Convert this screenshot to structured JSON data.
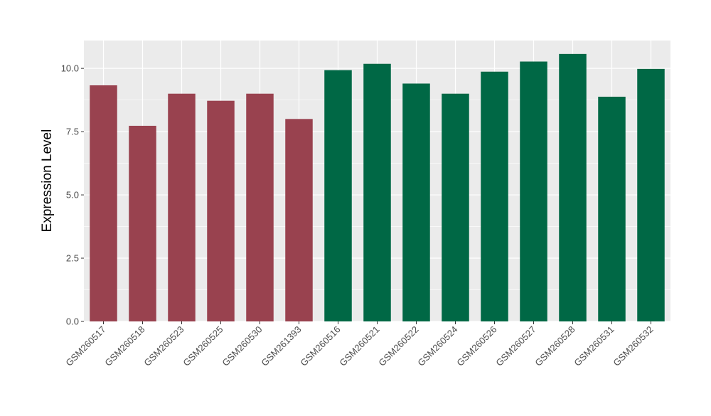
{
  "chart_data": {
    "type": "bar",
    "title": "",
    "xlabel": "",
    "ylabel": "Expression Level",
    "categories": [
      "GSM260517",
      "GSM260518",
      "GSM260523",
      "GSM260525",
      "GSM260530",
      "GSM261393",
      "GSM260516",
      "GSM260521",
      "GSM260522",
      "GSM260524",
      "GSM260526",
      "GSM260527",
      "GSM260528",
      "GSM260531",
      "GSM260532"
    ],
    "values": [
      9.33,
      7.73,
      9.0,
      8.72,
      9.0,
      8.0,
      9.93,
      10.18,
      9.4,
      9.0,
      9.87,
      10.27,
      10.57,
      8.88,
      9.98
    ],
    "groups": [
      "a",
      "a",
      "a",
      "a",
      "a",
      "a",
      "b",
      "b",
      "b",
      "b",
      "b",
      "b",
      "b",
      "b",
      "b"
    ],
    "colors": {
      "a": "#99424f",
      "b": "#006845"
    },
    "ylim": [
      0,
      11.1
    ],
    "yticks": [
      0,
      2.5,
      5,
      7.5,
      10
    ],
    "ytick_labels": [
      "0.0",
      "2.5",
      "5.0",
      "7.5",
      "10.0"
    ],
    "grid": true,
    "panel_background": "#ebebeb",
    "gridline_color": "#ffffff",
    "legend": "none"
  }
}
